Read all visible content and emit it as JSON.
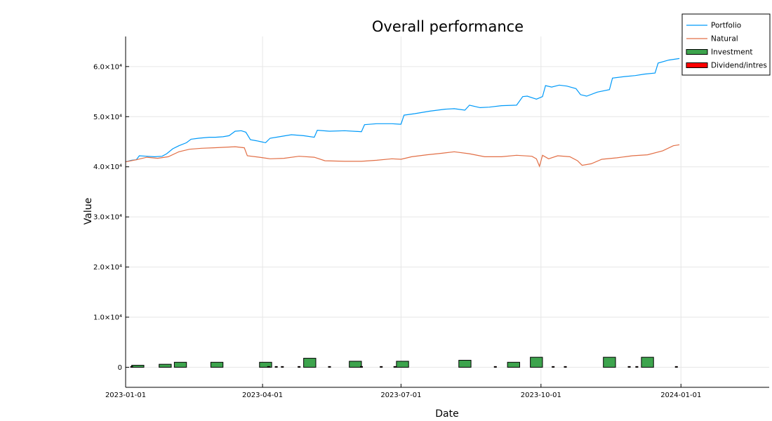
{
  "chart_data": {
    "type": "line",
    "title": "Overall performance",
    "xlabel": "Date",
    "ylabel": "Value",
    "xlim": [
      "2023-01-01",
      "2024-02-28"
    ],
    "ylim": [
      -4000,
      66000
    ],
    "grid": true,
    "legend_position": "top-right",
    "x_ticks": [
      "2023-01-01",
      "2023-04-01",
      "2023-07-01",
      "2023-10-01",
      "2024-01-01"
    ],
    "y_ticks": [
      {
        "value": 0,
        "label": "0"
      },
      {
        "value": 10000,
        "label": "1.0×10⁴"
      },
      {
        "value": 20000,
        "label": "2.0×10⁴"
      },
      {
        "value": 30000,
        "label": "3.0×10⁴"
      },
      {
        "value": 40000,
        "label": "4.0×10⁴"
      },
      {
        "value": 50000,
        "label": "5.0×10⁴"
      },
      {
        "value": 60000,
        "label": "6.0×10⁴"
      }
    ],
    "colors": {
      "Portfolio": "#009af9",
      "Natural": "#e26f46",
      "Investment": "#3da44d",
      "Dividend/intres": "#ff0000"
    },
    "series": [
      {
        "name": "Portfolio",
        "type": "line",
        "points": [
          [
            "2023-01-01",
            41000
          ],
          [
            "2023-01-05",
            41300
          ],
          [
            "2023-01-08",
            41400
          ],
          [
            "2023-01-10",
            42200
          ],
          [
            "2023-01-15",
            42100
          ],
          [
            "2023-01-20",
            42000
          ],
          [
            "2023-01-25",
            42100
          ],
          [
            "2023-01-28",
            42600
          ],
          [
            "2023-02-01",
            43600
          ],
          [
            "2023-02-05",
            44200
          ],
          [
            "2023-02-10",
            44800
          ],
          [
            "2023-02-13",
            45500
          ],
          [
            "2023-02-18",
            45700
          ],
          [
            "2023-02-25",
            45900
          ],
          [
            "2023-03-01",
            45900
          ],
          [
            "2023-03-06",
            46000
          ],
          [
            "2023-03-10",
            46200
          ],
          [
            "2023-03-14",
            47100
          ],
          [
            "2023-03-18",
            47200
          ],
          [
            "2023-03-21",
            46900
          ],
          [
            "2023-03-24",
            45400
          ],
          [
            "2023-03-28",
            45200
          ],
          [
            "2023-03-31",
            45000
          ],
          [
            "2023-04-03",
            44800
          ],
          [
            "2023-04-06",
            45700
          ],
          [
            "2023-04-12",
            46000
          ],
          [
            "2023-04-20",
            46400
          ],
          [
            "2023-04-28",
            46200
          ],
          [
            "2023-05-05",
            45900
          ],
          [
            "2023-05-07",
            47300
          ],
          [
            "2023-05-15",
            47100
          ],
          [
            "2023-05-25",
            47200
          ],
          [
            "2023-06-05",
            47000
          ],
          [
            "2023-06-07",
            48400
          ],
          [
            "2023-06-15",
            48600
          ],
          [
            "2023-06-25",
            48600
          ],
          [
            "2023-06-30",
            48500
          ],
          [
            "2023-07-01",
            48500
          ],
          [
            "2023-07-03",
            50300
          ],
          [
            "2023-07-10",
            50600
          ],
          [
            "2023-07-20",
            51100
          ],
          [
            "2023-07-30",
            51500
          ],
          [
            "2023-08-05",
            51600
          ],
          [
            "2023-08-12",
            51300
          ],
          [
            "2023-08-15",
            52300
          ],
          [
            "2023-08-22",
            51800
          ],
          [
            "2023-08-28",
            51900
          ],
          [
            "2023-09-05",
            52200
          ],
          [
            "2023-09-15",
            52300
          ],
          [
            "2023-09-19",
            54000
          ],
          [
            "2023-09-22",
            54100
          ],
          [
            "2023-09-28",
            53500
          ],
          [
            "2023-10-02",
            54000
          ],
          [
            "2023-10-04",
            56200
          ],
          [
            "2023-10-08",
            55900
          ],
          [
            "2023-10-13",
            56300
          ],
          [
            "2023-10-18",
            56100
          ],
          [
            "2023-10-24",
            55600
          ],
          [
            "2023-10-27",
            54400
          ],
          [
            "2023-10-31",
            54100
          ],
          [
            "2023-11-07",
            54900
          ],
          [
            "2023-11-15",
            55400
          ],
          [
            "2023-11-17",
            57700
          ],
          [
            "2023-11-25",
            58000
          ],
          [
            "2023-12-02",
            58200
          ],
          [
            "2023-12-08",
            58500
          ],
          [
            "2023-12-15",
            58700
          ],
          [
            "2023-12-17",
            60700
          ],
          [
            "2023-12-24",
            61300
          ],
          [
            "2023-12-31",
            61600
          ]
        ]
      },
      {
        "name": "Natural",
        "type": "line",
        "points": [
          [
            "2023-01-01",
            41000
          ],
          [
            "2023-01-08",
            41400
          ],
          [
            "2023-01-15",
            41900
          ],
          [
            "2023-01-22",
            41700
          ],
          [
            "2023-01-29",
            42000
          ],
          [
            "2023-02-05",
            43000
          ],
          [
            "2023-02-12",
            43500
          ],
          [
            "2023-02-20",
            43700
          ],
          [
            "2023-02-28",
            43800
          ],
          [
            "2023-03-07",
            43900
          ],
          [
            "2023-03-14",
            44000
          ],
          [
            "2023-03-20",
            43800
          ],
          [
            "2023-03-22",
            42200
          ],
          [
            "2023-03-30",
            41900
          ],
          [
            "2023-04-06",
            41600
          ],
          [
            "2023-04-15",
            41700
          ],
          [
            "2023-04-25",
            42100
          ],
          [
            "2023-05-05",
            41900
          ],
          [
            "2023-05-12",
            41200
          ],
          [
            "2023-05-25",
            41100
          ],
          [
            "2023-06-05",
            41100
          ],
          [
            "2023-06-15",
            41300
          ],
          [
            "2023-06-25",
            41600
          ],
          [
            "2023-07-01",
            41500
          ],
          [
            "2023-07-08",
            42000
          ],
          [
            "2023-07-18",
            42400
          ],
          [
            "2023-07-28",
            42700
          ],
          [
            "2023-08-05",
            43000
          ],
          [
            "2023-08-15",
            42600
          ],
          [
            "2023-08-25",
            42000
          ],
          [
            "2023-09-05",
            42000
          ],
          [
            "2023-09-15",
            42300
          ],
          [
            "2023-09-25",
            42100
          ],
          [
            "2023-09-28",
            41600
          ],
          [
            "2023-09-30",
            40100
          ],
          [
            "2023-10-02",
            42300
          ],
          [
            "2023-10-06",
            41600
          ],
          [
            "2023-10-12",
            42200
          ],
          [
            "2023-10-20",
            42000
          ],
          [
            "2023-10-25",
            41200
          ],
          [
            "2023-10-28",
            40300
          ],
          [
            "2023-11-03",
            40600
          ],
          [
            "2023-11-10",
            41500
          ],
          [
            "2023-11-20",
            41800
          ],
          [
            "2023-11-30",
            42200
          ],
          [
            "2023-12-10",
            42400
          ],
          [
            "2023-12-20",
            43200
          ],
          [
            "2023-12-27",
            44200
          ],
          [
            "2023-12-31",
            44400
          ]
        ]
      },
      {
        "name": "Investment",
        "type": "bar",
        "bars": [
          {
            "start": "2023-01-05",
            "end": "2023-01-13",
            "value": 400
          },
          {
            "start": "2023-01-23",
            "end": "2023-01-31",
            "value": 600
          },
          {
            "start": "2023-02-02",
            "end": "2023-02-10",
            "value": 1000
          },
          {
            "start": "2023-02-26",
            "end": "2023-03-06",
            "value": 1000
          },
          {
            "start": "2023-03-30",
            "end": "2023-04-07",
            "value": 1000
          },
          {
            "start": "2023-04-28",
            "end": "2023-05-06",
            "value": 1800
          },
          {
            "start": "2023-05-28",
            "end": "2023-06-05",
            "value": 1200
          },
          {
            "start": "2023-06-28",
            "end": "2023-07-06",
            "value": 1200
          },
          {
            "start": "2023-08-08",
            "end": "2023-08-16",
            "value": 1400
          },
          {
            "start": "2023-09-09",
            "end": "2023-09-17",
            "value": 1000
          },
          {
            "start": "2023-09-24",
            "end": "2023-10-02",
            "value": 2000
          },
          {
            "start": "2023-11-11",
            "end": "2023-11-19",
            "value": 2000
          },
          {
            "start": "2023-12-06",
            "end": "2023-12-14",
            "value": 2000
          }
        ]
      },
      {
        "name": "Dividend/intres",
        "type": "bar",
        "dates": [
          "2023-01-05",
          "2023-04-05",
          "2023-04-10",
          "2023-04-14",
          "2023-04-25",
          "2023-05-15",
          "2023-06-05",
          "2023-06-18",
          "2023-06-27",
          "2023-09-01",
          "2023-10-09",
          "2023-10-17",
          "2023-11-28",
          "2023-12-03",
          "2023-12-29"
        ],
        "value": 150
      }
    ]
  }
}
